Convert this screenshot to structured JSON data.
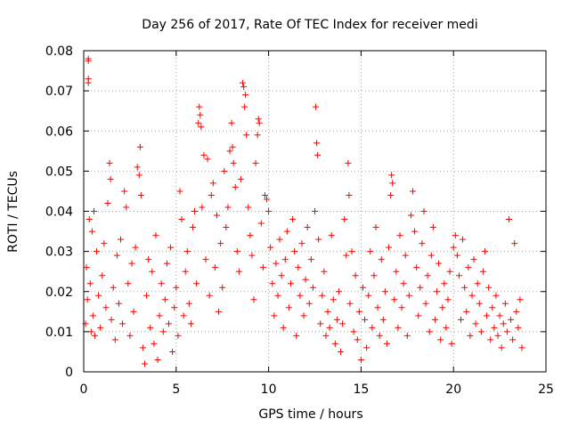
{
  "chart_data": {
    "type": "scatter",
    "title": "Day 256 of 2017, Rate Of TEC Index for receiver medi",
    "xlabel": "GPS time / hours",
    "ylabel": "ROTI / TECUs",
    "xlim": [
      0,
      25
    ],
    "ylim": [
      0,
      0.08
    ],
    "x_ticks": [
      0,
      5,
      10,
      15,
      20,
      25
    ],
    "x_tick_labels": [
      "0",
      "5",
      "10",
      "15",
      "20",
      "25"
    ],
    "y_ticks": [
      0,
      0.01,
      0.02,
      0.03,
      0.04,
      0.05,
      0.06,
      0.07,
      0.08
    ],
    "y_tick_labels": [
      "0",
      "0.01",
      "0.02",
      "0.03",
      "0.04",
      "0.05",
      "0.06",
      "0.07",
      "0.08"
    ],
    "grid": true,
    "legend": "none",
    "marker": "plus",
    "series": [
      {
        "color": "#ff0000",
        "points": [
          [
            0.1,
            0.012
          ],
          [
            0.15,
            0.026
          ],
          [
            0.2,
            0.018
          ],
          [
            0.25,
            0.078
          ],
          [
            0.25,
            0.0775
          ],
          [
            0.25,
            0.073
          ],
          [
            0.25,
            0.072
          ],
          [
            0.3,
            0.038
          ],
          [
            0.35,
            0.022
          ],
          [
            0.4,
            0.01
          ],
          [
            0.45,
            0.035
          ],
          [
            0.5,
            0.014
          ],
          [
            0.55,
            0.04
          ],
          [
            0.6,
            0.009
          ],
          [
            0.7,
            0.03
          ],
          [
            0.8,
            0.019
          ],
          [
            0.9,
            0.011
          ],
          [
            1.0,
            0.024
          ],
          [
            1.1,
            0.032
          ],
          [
            1.2,
            0.016
          ],
          [
            1.3,
            0.042
          ],
          [
            1.4,
            0.052
          ],
          [
            1.45,
            0.048
          ],
          [
            1.5,
            0.013
          ],
          [
            1.6,
            0.021
          ],
          [
            1.7,
            0.008
          ],
          [
            1.8,
            0.029
          ],
          [
            1.9,
            0.017
          ],
          [
            2.0,
            0.033
          ],
          [
            2.1,
            0.012
          ],
          [
            2.2,
            0.045
          ],
          [
            2.3,
            0.041
          ],
          [
            2.4,
            0.022
          ],
          [
            2.5,
            0.009
          ],
          [
            2.6,
            0.027
          ],
          [
            2.7,
            0.015
          ],
          [
            2.8,
            0.031
          ],
          [
            2.9,
            0.051
          ],
          [
            3.0,
            0.049
          ],
          [
            3.05,
            0.056
          ],
          [
            3.1,
            0.044
          ],
          [
            3.2,
            0.006
          ],
          [
            3.3,
            0.002
          ],
          [
            3.4,
            0.019
          ],
          [
            3.5,
            0.028
          ],
          [
            3.6,
            0.011
          ],
          [
            3.7,
            0.025
          ],
          [
            3.8,
            0.007
          ],
          [
            3.9,
            0.034
          ],
          [
            4.0,
            0.003
          ],
          [
            4.1,
            0.014
          ],
          [
            4.2,
            0.022
          ],
          [
            4.3,
            0.01
          ],
          [
            4.4,
            0.018
          ],
          [
            4.5,
            0.027
          ],
          [
            4.6,
            0.012
          ],
          [
            4.7,
            0.031
          ],
          [
            4.8,
            0.005
          ],
          [
            4.9,
            0.016
          ],
          [
            5.0,
            0.021
          ],
          [
            5.1,
            0.009
          ],
          [
            5.2,
            0.045
          ],
          [
            5.3,
            0.038
          ],
          [
            5.4,
            0.014
          ],
          [
            5.5,
            0.025
          ],
          [
            5.6,
            0.03
          ],
          [
            5.7,
            0.017
          ],
          [
            5.8,
            0.012
          ],
          [
            5.9,
            0.036
          ],
          [
            6.0,
            0.04
          ],
          [
            6.1,
            0.022
          ],
          [
            6.2,
            0.062
          ],
          [
            6.25,
            0.066
          ],
          [
            6.3,
            0.064
          ],
          [
            6.35,
            0.061
          ],
          [
            6.4,
            0.041
          ],
          [
            6.5,
            0.054
          ],
          [
            6.6,
            0.028
          ],
          [
            6.7,
            0.053
          ],
          [
            6.8,
            0.019
          ],
          [
            6.9,
            0.044
          ],
          [
            7.0,
            0.047
          ],
          [
            7.1,
            0.026
          ],
          [
            7.2,
            0.039
          ],
          [
            7.3,
            0.015
          ],
          [
            7.4,
            0.032
          ],
          [
            7.5,
            0.021
          ],
          [
            7.6,
            0.05
          ],
          [
            7.7,
            0.036
          ],
          [
            7.8,
            0.041
          ],
          [
            7.9,
            0.055
          ],
          [
            8.0,
            0.062
          ],
          [
            8.05,
            0.056
          ],
          [
            8.1,
            0.052
          ],
          [
            8.2,
            0.046
          ],
          [
            8.3,
            0.03
          ],
          [
            8.4,
            0.025
          ],
          [
            8.5,
            0.048
          ],
          [
            8.6,
            0.072
          ],
          [
            8.65,
            0.071
          ],
          [
            8.7,
            0.066
          ],
          [
            8.75,
            0.069
          ],
          [
            8.8,
            0.059
          ],
          [
            8.9,
            0.041
          ],
          [
            9.0,
            0.034
          ],
          [
            9.1,
            0.029
          ],
          [
            9.2,
            0.018
          ],
          [
            9.3,
            0.052
          ],
          [
            9.4,
            0.059
          ],
          [
            9.45,
            0.063
          ],
          [
            9.5,
            0.062
          ],
          [
            9.6,
            0.037
          ],
          [
            9.7,
            0.026
          ],
          [
            9.8,
            0.044
          ],
          [
            9.9,
            0.043
          ],
          [
            10.0,
            0.04
          ],
          [
            10.1,
            0.031
          ],
          [
            10.2,
            0.022
          ],
          [
            10.3,
            0.014
          ],
          [
            10.4,
            0.027
          ],
          [
            10.5,
            0.019
          ],
          [
            10.6,
            0.033
          ],
          [
            10.7,
            0.024
          ],
          [
            10.8,
            0.011
          ],
          [
            10.9,
            0.028
          ],
          [
            11.0,
            0.035
          ],
          [
            11.1,
            0.016
          ],
          [
            11.2,
            0.022
          ],
          [
            11.3,
            0.038
          ],
          [
            11.4,
            0.03
          ],
          [
            11.5,
            0.009
          ],
          [
            11.6,
            0.026
          ],
          [
            11.7,
            0.019
          ],
          [
            11.8,
            0.032
          ],
          [
            11.9,
            0.014
          ],
          [
            12.0,
            0.023
          ],
          [
            12.1,
            0.036
          ],
          [
            12.2,
            0.017
          ],
          [
            12.3,
            0.028
          ],
          [
            12.4,
            0.021
          ],
          [
            12.5,
            0.04
          ],
          [
            12.55,
            0.066
          ],
          [
            12.6,
            0.057
          ],
          [
            12.65,
            0.054
          ],
          [
            12.7,
            0.033
          ],
          [
            12.8,
            0.012
          ],
          [
            12.9,
            0.019
          ],
          [
            13.0,
            0.025
          ],
          [
            13.1,
            0.009
          ],
          [
            13.2,
            0.015
          ],
          [
            13.3,
            0.011
          ],
          [
            13.4,
            0.034
          ],
          [
            13.5,
            0.018
          ],
          [
            13.6,
            0.007
          ],
          [
            13.7,
            0.013
          ],
          [
            13.8,
            0.02
          ],
          [
            13.9,
            0.005
          ],
          [
            14.0,
            0.012
          ],
          [
            14.1,
            0.038
          ],
          [
            14.2,
            0.029
          ],
          [
            14.3,
            0.052
          ],
          [
            14.35,
            0.044
          ],
          [
            14.4,
            0.017
          ],
          [
            14.5,
            0.03
          ],
          [
            14.6,
            0.01
          ],
          [
            14.7,
            0.024
          ],
          [
            14.8,
            0.008
          ],
          [
            14.9,
            0.015
          ],
          [
            15.0,
            0.003
          ],
          [
            15.1,
            0.021
          ],
          [
            15.2,
            0.013
          ],
          [
            15.3,
            0.006
          ],
          [
            15.4,
            0.019
          ],
          [
            15.5,
            0.03
          ],
          [
            15.6,
            0.011
          ],
          [
            15.7,
            0.024
          ],
          [
            15.8,
            0.036
          ],
          [
            15.9,
            0.016
          ],
          [
            16.0,
            0.009
          ],
          [
            16.1,
            0.028
          ],
          [
            16.2,
            0.013
          ],
          [
            16.3,
            0.02
          ],
          [
            16.4,
            0.007
          ],
          [
            16.5,
            0.031
          ],
          [
            16.6,
            0.044
          ],
          [
            16.65,
            0.049
          ],
          [
            16.7,
            0.047
          ],
          [
            16.8,
            0.018
          ],
          [
            16.9,
            0.025
          ],
          [
            17.0,
            0.011
          ],
          [
            17.1,
            0.034
          ],
          [
            17.2,
            0.016
          ],
          [
            17.3,
            0.022
          ],
          [
            17.4,
            0.029
          ],
          [
            17.5,
            0.009
          ],
          [
            17.6,
            0.019
          ],
          [
            17.7,
            0.039
          ],
          [
            17.8,
            0.045
          ],
          [
            17.9,
            0.035
          ],
          [
            18.0,
            0.026
          ],
          [
            18.1,
            0.014
          ],
          [
            18.2,
            0.021
          ],
          [
            18.3,
            0.032
          ],
          [
            18.4,
            0.04
          ],
          [
            18.5,
            0.017
          ],
          [
            18.6,
            0.024
          ],
          [
            18.7,
            0.01
          ],
          [
            18.8,
            0.029
          ],
          [
            18.9,
            0.036
          ],
          [
            19.0,
            0.013
          ],
          [
            19.1,
            0.02
          ],
          [
            19.2,
            0.027
          ],
          [
            19.3,
            0.008
          ],
          [
            19.4,
            0.016
          ],
          [
            19.5,
            0.022
          ],
          [
            19.6,
            0.011
          ],
          [
            19.7,
            0.018
          ],
          [
            19.8,
            0.025
          ],
          [
            19.9,
            0.007
          ],
          [
            20.0,
            0.031
          ],
          [
            20.1,
            0.034
          ],
          [
            20.2,
            0.029
          ],
          [
            20.3,
            0.024
          ],
          [
            20.4,
            0.013
          ],
          [
            20.5,
            0.033
          ],
          [
            20.6,
            0.021
          ],
          [
            20.7,
            0.015
          ],
          [
            20.8,
            0.026
          ],
          [
            20.9,
            0.009
          ],
          [
            21.0,
            0.019
          ],
          [
            21.1,
            0.028
          ],
          [
            21.2,
            0.012
          ],
          [
            21.3,
            0.022
          ],
          [
            21.4,
            0.017
          ],
          [
            21.5,
            0.01
          ],
          [
            21.6,
            0.025
          ],
          [
            21.7,
            0.03
          ],
          [
            21.8,
            0.014
          ],
          [
            21.9,
            0.021
          ],
          [
            22.0,
            0.008
          ],
          [
            22.1,
            0.016
          ],
          [
            22.2,
            0.011
          ],
          [
            22.3,
            0.019
          ],
          [
            22.4,
            0.009
          ],
          [
            22.5,
            0.014
          ],
          [
            22.6,
            0.006
          ],
          [
            22.7,
            0.012
          ],
          [
            22.8,
            0.017
          ],
          [
            22.9,
            0.01
          ],
          [
            23.0,
            0.038
          ],
          [
            23.1,
            0.013
          ],
          [
            23.2,
            0.008
          ],
          [
            23.3,
            0.032
          ],
          [
            23.4,
            0.015
          ],
          [
            23.5,
            0.011
          ],
          [
            23.6,
            0.018
          ],
          [
            23.7,
            0.006
          ]
        ]
      }
    ]
  }
}
